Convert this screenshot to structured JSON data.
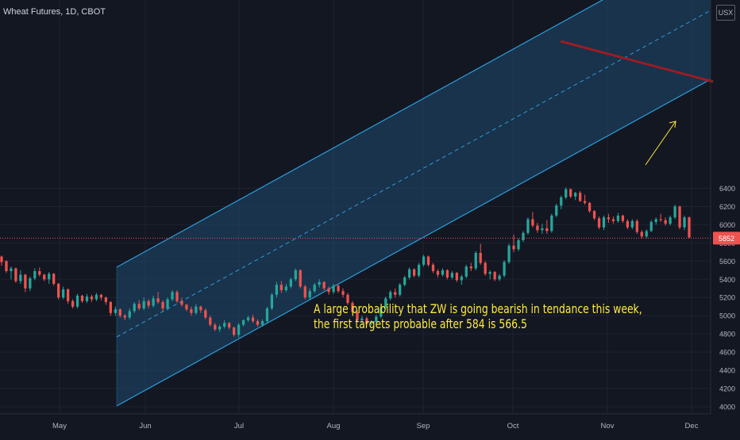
{
  "header": {
    "title": "Wheat Futures, 1D, CBOT",
    "currency": "USX"
  },
  "annotation": {
    "line1": "A large probability that ZW is going bearish in tendance this week,",
    "line2": "the first  targets probable after 584 is 566.5"
  },
  "price_label": "5852",
  "colors": {
    "background": "#131722",
    "up": "#26a69a",
    "down": "#ef5350",
    "channel": "#2d9cdb",
    "channel_fill": "#1e4a6e",
    "trendline": "#9c1c24",
    "arrow": "#ffeb3b",
    "annotation": "#ffeb3b"
  },
  "chart_data": {
    "type": "candlestick",
    "title": "Wheat Futures, 1D, CBOT",
    "ylim": [
      3980,
      6780
    ],
    "y_ticks": [
      4000,
      4200,
      4400,
      4600,
      4800,
      5000,
      5200,
      5400,
      5600,
      5800,
      6000,
      6200,
      6400
    ],
    "y_tick_labels": [
      "4000",
      "4200",
      "4400",
      "4600",
      "4800",
      "5000",
      "5200",
      "5400",
      "5600",
      "5800",
      "6000",
      "6200",
      "6400"
    ],
    "x_labels": [
      "May",
      "Jun",
      "Jul",
      "Aug",
      "Sep",
      "Oct",
      "Nov",
      "Dec"
    ],
    "last_price": 5852,
    "candles": [
      [
        5650,
        5660,
        5550,
        5590
      ],
      [
        5600,
        5610,
        5470,
        5490
      ],
      [
        5490,
        5540,
        5400,
        5520
      ],
      [
        5520,
        5530,
        5360,
        5380
      ],
      [
        5380,
        5500,
        5350,
        5450
      ],
      [
        5450,
        5460,
        5260,
        5300
      ],
      [
        5300,
        5430,
        5270,
        5410
      ],
      [
        5410,
        5520,
        5390,
        5490
      ],
      [
        5490,
        5530,
        5430,
        5450
      ],
      [
        5450,
        5460,
        5380,
        5400
      ],
      [
        5400,
        5480,
        5350,
        5460
      ],
      [
        5460,
        5470,
        5330,
        5350
      ],
      [
        5350,
        5360,
        5180,
        5200
      ],
      [
        5200,
        5320,
        5180,
        5290
      ],
      [
        5290,
        5300,
        5130,
        5160
      ],
      [
        5160,
        5180,
        5080,
        5100
      ],
      [
        5100,
        5240,
        5080,
        5220
      ],
      [
        5220,
        5230,
        5140,
        5160
      ],
      [
        5160,
        5240,
        5140,
        5210
      ],
      [
        5210,
        5230,
        5150,
        5180
      ],
      [
        5180,
        5250,
        5160,
        5230
      ],
      [
        5230,
        5240,
        5170,
        5200
      ],
      [
        5200,
        5210,
        5120,
        5150
      ],
      [
        5150,
        5160,
        5000,
        5030
      ],
      [
        5030,
        5100,
        5000,
        5070
      ],
      [
        5070,
        5080,
        4980,
        5000
      ],
      [
        5000,
        5020,
        4950,
        4980
      ],
      [
        4980,
        5080,
        4960,
        5050
      ],
      [
        5050,
        5150,
        5030,
        5130
      ],
      [
        5130,
        5170,
        5060,
        5080
      ],
      [
        5080,
        5200,
        5060,
        5160
      ],
      [
        5160,
        5180,
        5080,
        5110
      ],
      [
        5110,
        5220,
        5090,
        5190
      ],
      [
        5190,
        5260,
        5130,
        5150
      ],
      [
        5150,
        5170,
        5050,
        5080
      ],
      [
        5080,
        5200,
        5060,
        5180
      ],
      [
        5180,
        5280,
        5160,
        5260
      ],
      [
        5260,
        5280,
        5140,
        5160
      ],
      [
        5160,
        5200,
        5100,
        5120
      ],
      [
        5120,
        5130,
        5050,
        5070
      ],
      [
        5070,
        5100,
        5000,
        5030
      ],
      [
        5030,
        5130,
        5010,
        5100
      ],
      [
        5100,
        5110,
        5030,
        5060
      ],
      [
        5060,
        5080,
        4960,
        4980
      ],
      [
        4980,
        5000,
        4880,
        4900
      ],
      [
        4900,
        4920,
        4830,
        4850
      ],
      [
        4850,
        4900,
        4820,
        4880
      ],
      [
        4880,
        4950,
        4860,
        4920
      ],
      [
        4920,
        4930,
        4850,
        4870
      ],
      [
        4870,
        4880,
        4770,
        4790
      ],
      [
        4790,
        4920,
        4760,
        4900
      ],
      [
        4900,
        4960,
        4880,
        4950
      ],
      [
        4950,
        5000,
        4930,
        4980
      ],
      [
        4980,
        5010,
        4920,
        4940
      ],
      [
        4940,
        4960,
        4880,
        4900
      ],
      [
        4900,
        4960,
        4880,
        4940
      ],
      [
        4940,
        5100,
        4920,
        5080
      ],
      [
        5080,
        5250,
        5060,
        5230
      ],
      [
        5230,
        5370,
        5200,
        5340
      ],
      [
        5340,
        5380,
        5250,
        5280
      ],
      [
        5280,
        5350,
        5260,
        5320
      ],
      [
        5320,
        5420,
        5300,
        5400
      ],
      [
        5400,
        5520,
        5380,
        5500
      ],
      [
        5500,
        5510,
        5300,
        5320
      ],
      [
        5320,
        5340,
        5180,
        5200
      ],
      [
        5200,
        5300,
        5180,
        5270
      ],
      [
        5270,
        5360,
        5250,
        5340
      ],
      [
        5340,
        5400,
        5310,
        5370
      ],
      [
        5370,
        5380,
        5280,
        5300
      ],
      [
        5300,
        5320,
        5230,
        5260
      ],
      [
        5260,
        5350,
        5240,
        5330
      ],
      [
        5330,
        5340,
        5250,
        5270
      ],
      [
        5270,
        5300,
        5200,
        5230
      ],
      [
        5230,
        5250,
        5120,
        5140
      ],
      [
        5140,
        5160,
        5020,
        5040
      ],
      [
        5040,
        5060,
        4930,
        4950
      ],
      [
        4950,
        5000,
        4900,
        4970
      ],
      [
        4970,
        4990,
        4880,
        4910
      ],
      [
        4910,
        4950,
        4890,
        4930
      ],
      [
        4930,
        5010,
        4910,
        4990
      ],
      [
        4990,
        5110,
        4970,
        5090
      ],
      [
        5090,
        5210,
        5070,
        5190
      ],
      [
        5190,
        5280,
        5170,
        5260
      ],
      [
        5260,
        5300,
        5200,
        5230
      ],
      [
        5230,
        5360,
        5210,
        5340
      ],
      [
        5340,
        5440,
        5320,
        5420
      ],
      [
        5420,
        5530,
        5400,
        5510
      ],
      [
        5510,
        5520,
        5420,
        5440
      ],
      [
        5440,
        5580,
        5420,
        5560
      ],
      [
        5560,
        5670,
        5540,
        5650
      ],
      [
        5650,
        5660,
        5540,
        5560
      ],
      [
        5560,
        5580,
        5470,
        5490
      ],
      [
        5490,
        5510,
        5420,
        5450
      ],
      [
        5450,
        5520,
        5430,
        5500
      ],
      [
        5500,
        5510,
        5400,
        5420
      ],
      [
        5420,
        5490,
        5400,
        5470
      ],
      [
        5470,
        5480,
        5370,
        5390
      ],
      [
        5390,
        5450,
        5340,
        5430
      ],
      [
        5430,
        5560,
        5410,
        5540
      ],
      [
        5540,
        5580,
        5490,
        5520
      ],
      [
        5520,
        5710,
        5500,
        5690
      ],
      [
        5690,
        5790,
        5560,
        5580
      ],
      [
        5580,
        5600,
        5440,
        5460
      ],
      [
        5460,
        5500,
        5400,
        5480
      ],
      [
        5480,
        5490,
        5380,
        5400
      ],
      [
        5400,
        5460,
        5380,
        5440
      ],
      [
        5440,
        5610,
        5420,
        5590
      ],
      [
        5590,
        5790,
        5570,
        5770
      ],
      [
        5770,
        5890,
        5700,
        5730
      ],
      [
        5730,
        5850,
        5710,
        5830
      ],
      [
        5830,
        5930,
        5810,
        5910
      ],
      [
        5910,
        6080,
        5890,
        6060
      ],
      [
        6060,
        6140,
        5970,
        5990
      ],
      [
        5990,
        6020,
        5910,
        5940
      ],
      [
        5940,
        6010,
        5900,
        5960
      ],
      [
        5960,
        6050,
        5900,
        5930
      ],
      [
        5930,
        6120,
        5910,
        6100
      ],
      [
        6100,
        6230,
        6080,
        6210
      ],
      [
        6210,
        6320,
        6170,
        6300
      ],
      [
        6300,
        6410,
        6280,
        6390
      ],
      [
        6390,
        6400,
        6290,
        6310
      ],
      [
        6310,
        6360,
        6270,
        6350
      ],
      [
        6350,
        6370,
        6250,
        6260
      ],
      [
        6260,
        6330,
        6220,
        6240
      ],
      [
        6240,
        6250,
        6130,
        6150
      ],
      [
        6150,
        6160,
        6050,
        6070
      ],
      [
        6070,
        6090,
        5950,
        5970
      ],
      [
        5970,
        6100,
        5940,
        6080
      ],
      [
        6080,
        6120,
        6020,
        6060
      ],
      [
        6060,
        6090,
        6010,
        6040
      ],
      [
        6040,
        6130,
        6020,
        6100
      ],
      [
        6100,
        6110,
        6020,
        6040
      ],
      [
        6040,
        6060,
        5950,
        5970
      ],
      [
        5970,
        6060,
        5950,
        6040
      ],
      [
        6040,
        6060,
        5900,
        5920
      ],
      [
        5920,
        5940,
        5850,
        5870
      ],
      [
        5870,
        5950,
        5850,
        5930
      ],
      [
        5930,
        6050,
        5920,
        6030
      ],
      [
        6030,
        6080,
        6000,
        6060
      ],
      [
        6060,
        6120,
        6030,
        6050
      ],
      [
        6050,
        6080,
        5990,
        6010
      ],
      [
        6010,
        6100,
        5990,
        6080
      ],
      [
        6080,
        6220,
        6060,
        6200
      ],
      [
        6200,
        6210,
        5950,
        5970
      ],
      [
        5970,
        6100,
        5940,
        6080
      ],
      [
        6080,
        6090,
        5850,
        5860
      ]
    ]
  }
}
